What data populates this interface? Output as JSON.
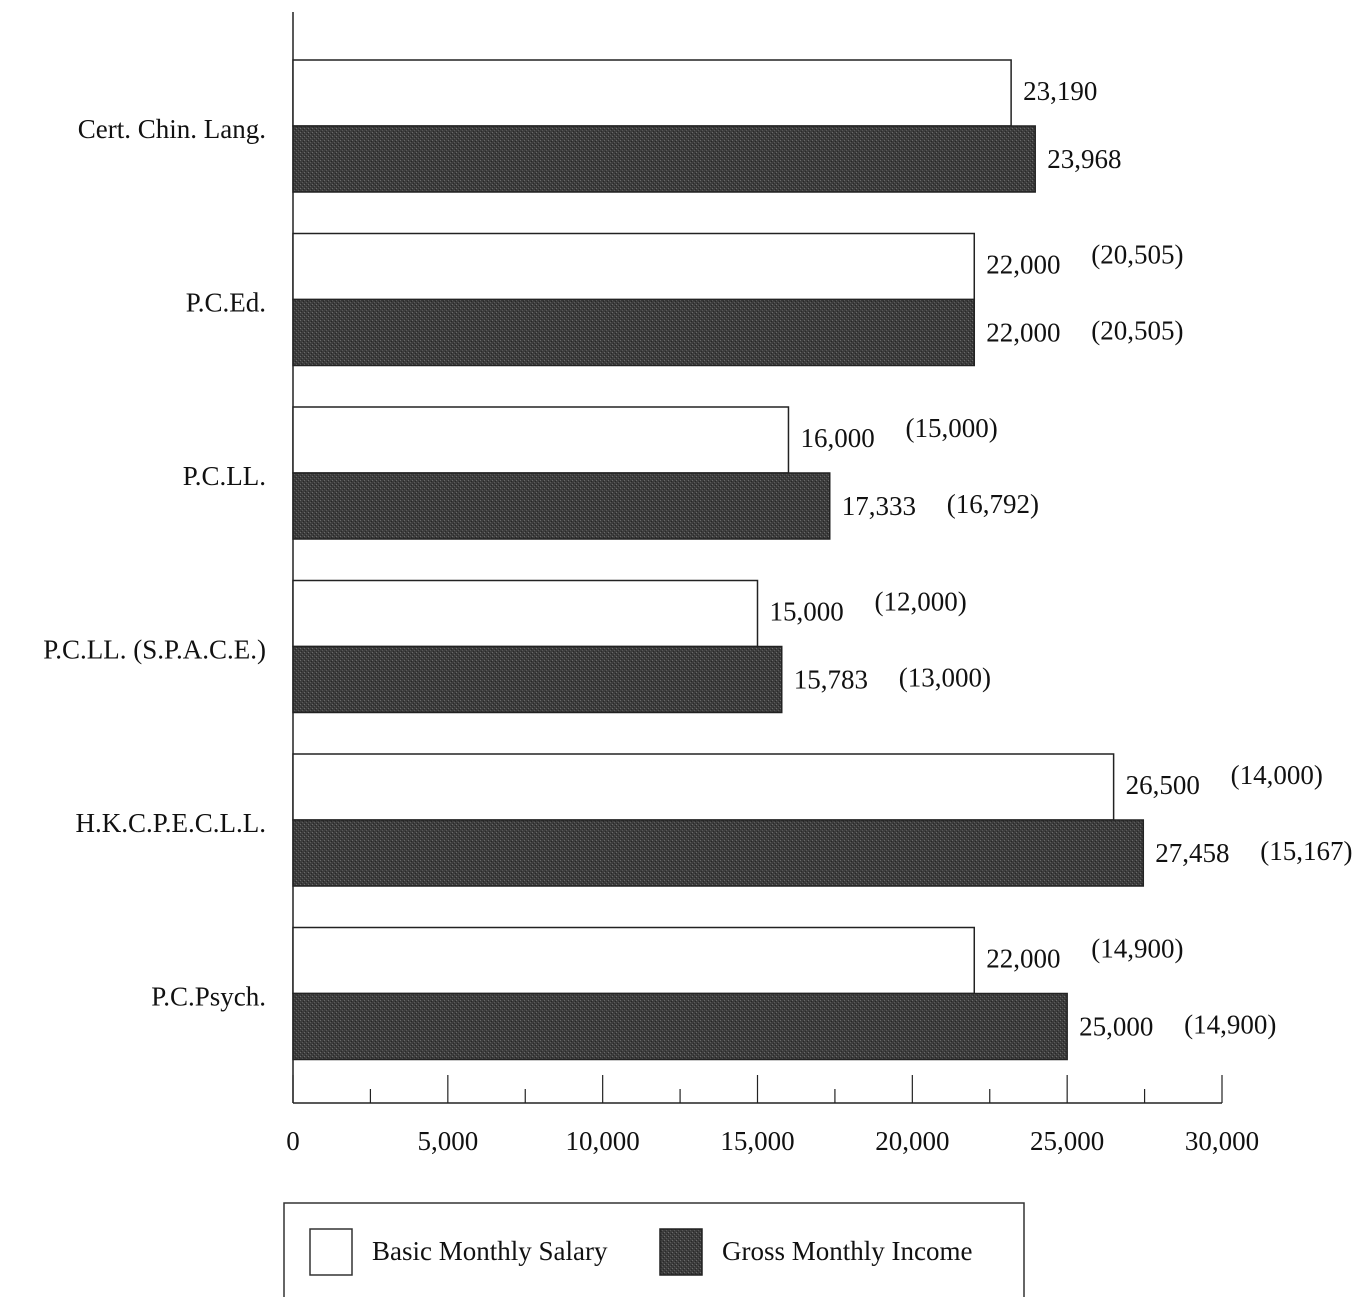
{
  "chart_data": {
    "type": "bar",
    "orientation": "horizontal",
    "categories": [
      "Cert. Chin. Lang.",
      "P.C.Ed.",
      "P.C.LL.",
      "P.C.LL. (S.P.A.C.E.)",
      "H.K.C.P.E.C.L.L.",
      "P.C.Psych."
    ],
    "series": [
      {
        "name": "Basic Monthly Salary",
        "color": "#ffffff",
        "values": [
          23190,
          22000,
          16000,
          15000,
          26500,
          22000
        ],
        "labels": [
          "23,190",
          "22,000",
          "16,000",
          "15,000",
          "26,500",
          "22,000"
        ],
        "secondary_labels": [
          "",
          "(20,505)",
          "(15,000)",
          "(12,000)",
          "(14,000)",
          "(14,900)"
        ]
      },
      {
        "name": "Gross Monthly Income",
        "color": "#3a3a3a",
        "values": [
          23968,
          22000,
          17333,
          15783,
          27458,
          25000
        ],
        "labels": [
          "23,968",
          "22,000",
          "17,333",
          "15,783",
          "27,458",
          "25,000"
        ],
        "secondary_labels": [
          "",
          "(20,505)",
          "(16,792)",
          "(13,000)",
          "(15,167)",
          "(14,900)"
        ]
      }
    ],
    "xlim": [
      0,
      30000
    ],
    "xticks": [
      0,
      5000,
      10000,
      15000,
      20000,
      25000,
      30000
    ],
    "xtick_labels": [
      "0",
      "5,000",
      "10,000",
      "15,000",
      "20,000",
      "25,000",
      "30,000"
    ],
    "grid": false,
    "legend": {
      "placement": "bottom",
      "entries": [
        "Basic Monthly Salary",
        "Gross Monthly Income"
      ]
    }
  }
}
